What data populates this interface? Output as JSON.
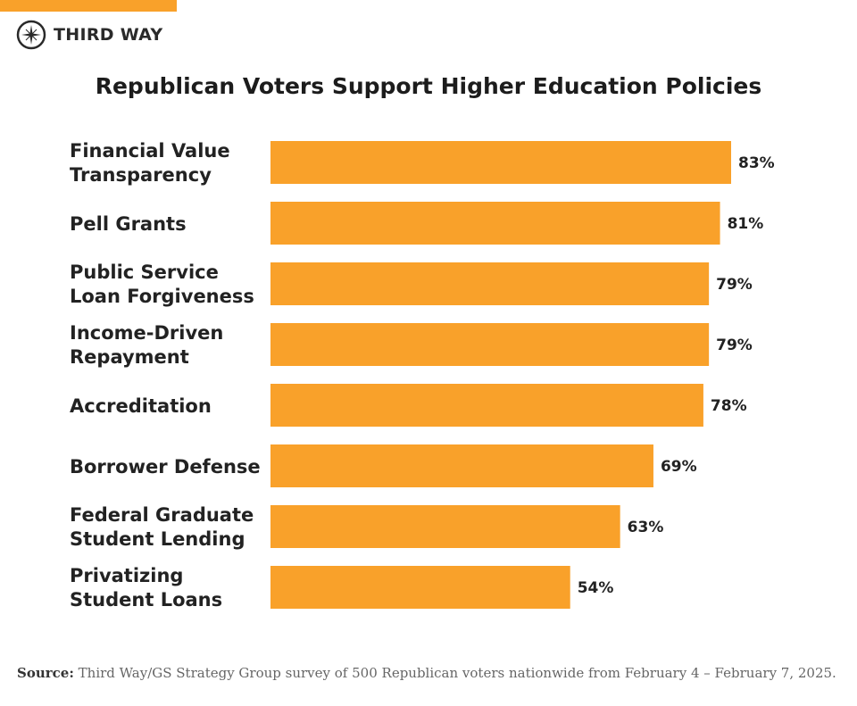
{
  "brand": {
    "name": "THIRD WAY",
    "accent": "#f9a12a"
  },
  "chart_data": {
    "type": "bar",
    "orientation": "horizontal",
    "title": "Republican Voters Support Higher Education Policies",
    "categories": [
      [
        "Financial Value",
        "Transparency"
      ],
      [
        "Pell Grants"
      ],
      [
        "Public Service",
        "Loan Forgiveness"
      ],
      [
        "Income-Driven",
        "Repayment"
      ],
      [
        "Accreditation"
      ],
      [
        "Borrower Defense"
      ],
      [
        "Federal Graduate",
        "Student Lending"
      ],
      [
        "Privatizing",
        "Student Loans"
      ]
    ],
    "values": [
      83,
      81,
      79,
      79,
      78,
      69,
      63,
      54
    ],
    "data_labels": [
      "83%",
      "81%",
      "79%",
      "79%",
      "78%",
      "69%",
      "63%",
      "54%"
    ],
    "unit": "%",
    "bar_color": "#f9a12a",
    "grid": false,
    "legend": "none"
  },
  "source": {
    "label": "Source:",
    "text": "Third Way/GS Strategy Group survey of 500 Republican voters nationwide from February 4 – February 7, 2025."
  }
}
